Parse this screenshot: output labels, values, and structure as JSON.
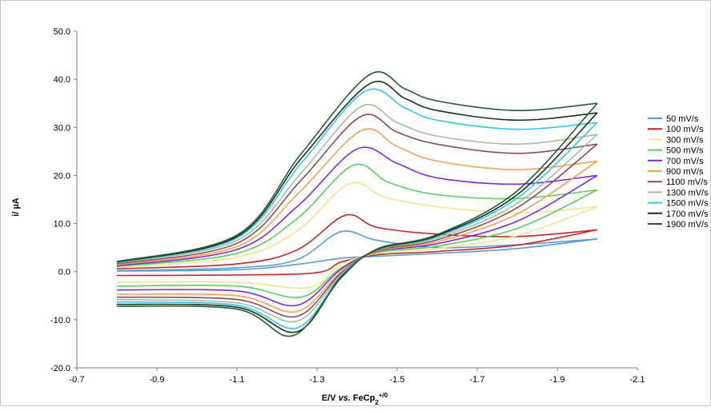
{
  "chart_data": {
    "type": "line",
    "xlabel": "E/V vs. FeCp2+/0",
    "xlabel_parts": {
      "main": "E/V ",
      "italic": "vs.",
      "rest": " FeCp",
      "sub": "2",
      "sup": "+/0"
    },
    "ylabel": "i/ µA",
    "xlim": [
      -0.7,
      -2.1
    ],
    "ylim": [
      -20,
      50
    ],
    "x_ticks": [
      "-0.7",
      "-0.9",
      "-1.1",
      "-1.3",
      "-1.5",
      "-1.7",
      "-1.9",
      "-2.1"
    ],
    "y_ticks": [
      "-20.0",
      "-10.0",
      "0.0",
      "10.0",
      "20.0",
      "30.0",
      "40.0",
      "50.0"
    ],
    "legend_position": "right",
    "x_sweep": [
      -0.8,
      -2.0
    ],
    "series": [
      {
        "name": "50 mV/s",
        "color": "#5b9bd5",
        "forward": [
          [
            -0.8,
            0.2
          ],
          [
            -1.1,
            0.8
          ],
          [
            -1.25,
            2.5
          ],
          [
            -1.36,
            8.3
          ],
          [
            -1.45,
            6.5
          ],
          [
            -1.6,
            5.0
          ],
          [
            -1.8,
            5.6
          ],
          [
            -2.0,
            6.8
          ]
        ],
        "reverse": [
          [
            -2.0,
            6.8
          ],
          [
            -1.8,
            4.8
          ],
          [
            -1.6,
            3.8
          ],
          [
            -1.45,
            3.2
          ],
          [
            -1.36,
            2.8
          ],
          [
            -1.25,
            1.5
          ],
          [
            -1.1,
            0.4
          ],
          [
            -0.8,
            0.1
          ]
        ]
      },
      {
        "name": "100 mV/s",
        "color": "#c0282a",
        "forward": [
          [
            -0.8,
            0.6
          ],
          [
            -1.1,
            1.6
          ],
          [
            -1.25,
            4.5
          ],
          [
            -1.37,
            11.7
          ],
          [
            -1.45,
            9.2
          ],
          [
            -1.6,
            7.8
          ],
          [
            -1.8,
            7.3
          ],
          [
            -2.0,
            8.7
          ]
        ],
        "reverse": [
          [
            -2.0,
            8.7
          ],
          [
            -1.8,
            5.5
          ],
          [
            -1.6,
            4.2
          ],
          [
            -1.45,
            3.5
          ],
          [
            -1.36,
            2.0
          ],
          [
            -1.3,
            -0.2
          ],
          [
            -1.1,
            -0.7
          ],
          [
            -0.8,
            -0.8
          ]
        ]
      },
      {
        "name": "300 mV/s",
        "color": "#f2e48e",
        "forward": [
          [
            -0.8,
            0.9
          ],
          [
            -1.1,
            3.0
          ],
          [
            -1.25,
            8.5
          ],
          [
            -1.38,
            18.3
          ],
          [
            -1.47,
            15.5
          ],
          [
            -1.6,
            13.5
          ],
          [
            -1.8,
            12.2
          ],
          [
            -2.0,
            13.5
          ]
        ],
        "reverse": [
          [
            -2.0,
            13.5
          ],
          [
            -1.8,
            7.5
          ],
          [
            -1.6,
            4.8
          ],
          [
            -1.45,
            3.8
          ],
          [
            -1.36,
            1.5
          ],
          [
            -1.28,
            -3.3
          ],
          [
            -1.1,
            -2.2
          ],
          [
            -0.8,
            -2.2
          ]
        ]
      },
      {
        "name": "500 mV/s",
        "color": "#5bcd5b",
        "forward": [
          [
            -0.8,
            1.1
          ],
          [
            -1.1,
            3.8
          ],
          [
            -1.25,
            11.0
          ],
          [
            -1.39,
            22.1
          ],
          [
            -1.48,
            18.5
          ],
          [
            -1.6,
            16.0
          ],
          [
            -1.8,
            15.2
          ],
          [
            -2.0,
            17.0
          ]
        ],
        "reverse": [
          [
            -2.0,
            17.0
          ],
          [
            -1.8,
            9.0
          ],
          [
            -1.6,
            5.3
          ],
          [
            -1.45,
            4.0
          ],
          [
            -1.36,
            0.8
          ],
          [
            -1.26,
            -5.3
          ],
          [
            -1.1,
            -3.0
          ],
          [
            -0.8,
            -3.0
          ]
        ]
      },
      {
        "name": "700 mV/s",
        "color": "#7a2be0",
        "forward": [
          [
            -0.8,
            1.2
          ],
          [
            -1.1,
            4.6
          ],
          [
            -1.25,
            13.5
          ],
          [
            -1.4,
            25.5
          ],
          [
            -1.5,
            22.5
          ],
          [
            -1.6,
            19.5
          ],
          [
            -1.8,
            18.2
          ],
          [
            -2.0,
            20.0
          ]
        ],
        "reverse": [
          [
            -2.0,
            20.0
          ],
          [
            -1.8,
            10.5
          ],
          [
            -1.6,
            5.8
          ],
          [
            -1.45,
            4.2
          ],
          [
            -1.36,
            0.5
          ],
          [
            -1.25,
            -7.0
          ],
          [
            -1.1,
            -4.0
          ],
          [
            -0.8,
            -3.8
          ]
        ]
      },
      {
        "name": "900 mV/s",
        "color": "#f5a055",
        "forward": [
          [
            -0.8,
            1.4
          ],
          [
            -1.1,
            5.2
          ],
          [
            -1.25,
            16.0
          ],
          [
            -1.41,
            29.3
          ],
          [
            -1.5,
            26.0
          ],
          [
            -1.6,
            23.0
          ],
          [
            -1.8,
            21.2
          ],
          [
            -2.0,
            23.0
          ]
        ],
        "reverse": [
          [
            -2.0,
            23.0
          ],
          [
            -1.8,
            12.0
          ],
          [
            -1.6,
            6.2
          ],
          [
            -1.45,
            4.3
          ],
          [
            -1.36,
            0.0
          ],
          [
            -1.25,
            -8.3
          ],
          [
            -1.1,
            -5.0
          ],
          [
            -0.8,
            -4.7
          ]
        ]
      },
      {
        "name": "1100 mV/s",
        "color": "#8b4a5c",
        "forward": [
          [
            -0.8,
            1.6
          ],
          [
            -1.1,
            5.9
          ],
          [
            -1.26,
            19.0
          ],
          [
            -1.41,
            32.3
          ],
          [
            -1.5,
            29.0
          ],
          [
            -1.6,
            26.5
          ],
          [
            -1.8,
            24.6
          ],
          [
            -2.0,
            26.5
          ]
        ],
        "reverse": [
          [
            -2.0,
            26.5
          ],
          [
            -1.8,
            13.3
          ],
          [
            -1.6,
            6.6
          ],
          [
            -1.45,
            4.4
          ],
          [
            -1.36,
            -0.3
          ],
          [
            -1.25,
            -9.3
          ],
          [
            -1.1,
            -5.8
          ],
          [
            -0.8,
            -5.3
          ]
        ]
      },
      {
        "name": "1300 mV/s",
        "color": "#a8bc9c",
        "forward": [
          [
            -0.8,
            1.8
          ],
          [
            -1.1,
            6.5
          ],
          [
            -1.26,
            20.5
          ],
          [
            -1.41,
            34.3
          ],
          [
            -1.5,
            31.0
          ],
          [
            -1.6,
            28.2
          ],
          [
            -1.8,
            26.5
          ],
          [
            -2.0,
            28.5
          ]
        ],
        "reverse": [
          [
            -2.0,
            28.5
          ],
          [
            -1.8,
            14.2
          ],
          [
            -1.6,
            7.0
          ],
          [
            -1.45,
            4.5
          ],
          [
            -1.36,
            -0.6
          ],
          [
            -1.25,
            -10.3
          ],
          [
            -1.1,
            -6.5
          ],
          [
            -0.8,
            -5.8
          ]
        ]
      },
      {
        "name": "1500 mV/s",
        "color": "#33c6ec",
        "forward": [
          [
            -0.8,
            1.9
          ],
          [
            -1.1,
            7.0
          ],
          [
            -1.26,
            22.5
          ],
          [
            -1.42,
            37.5
          ],
          [
            -1.52,
            34.0
          ],
          [
            -1.6,
            31.5
          ],
          [
            -1.8,
            29.6
          ],
          [
            -2.0,
            31.0
          ]
        ],
        "reverse": [
          [
            -2.0,
            31.0
          ],
          [
            -1.8,
            15.3
          ],
          [
            -1.6,
            7.3
          ],
          [
            -1.45,
            4.6
          ],
          [
            -1.36,
            -0.9
          ],
          [
            -1.25,
            -11.7
          ],
          [
            -1.1,
            -7.0
          ],
          [
            -0.8,
            -6.3
          ]
        ]
      },
      {
        "name": "1700 mV/s",
        "color": "#10351a",
        "forward": [
          [
            -0.8,
            2.0
          ],
          [
            -1.1,
            7.3
          ],
          [
            -1.26,
            23.5
          ],
          [
            -1.43,
            39.0
          ],
          [
            -1.52,
            36.0
          ],
          [
            -1.6,
            33.5
          ],
          [
            -1.8,
            31.5
          ],
          [
            -2.0,
            33.0
          ]
        ],
        "reverse": [
          [
            -2.0,
            33.0
          ],
          [
            -1.8,
            16.0
          ],
          [
            -1.6,
            7.5
          ],
          [
            -1.45,
            4.6
          ],
          [
            -1.36,
            -1.1
          ],
          [
            -1.25,
            -12.5
          ],
          [
            -1.1,
            -7.4
          ],
          [
            -0.8,
            -6.8
          ]
        ]
      },
      {
        "name": "1900 mV/s",
        "color": "#2a5a36",
        "forward": [
          [
            -0.8,
            2.1
          ],
          [
            -1.1,
            7.6
          ],
          [
            -1.26,
            24.5
          ],
          [
            -1.43,
            40.9
          ],
          [
            -1.52,
            38.0
          ],
          [
            -1.6,
            35.5
          ],
          [
            -1.8,
            33.5
          ],
          [
            -2.0,
            35.0
          ]
        ],
        "reverse": [
          [
            -2.0,
            35.0
          ],
          [
            -1.8,
            16.8
          ],
          [
            -1.6,
            7.7
          ],
          [
            -1.45,
            4.7
          ],
          [
            -1.36,
            -1.3
          ],
          [
            -1.24,
            -13.3
          ],
          [
            -1.1,
            -7.8
          ],
          [
            -0.8,
            -7.2
          ]
        ]
      }
    ]
  }
}
